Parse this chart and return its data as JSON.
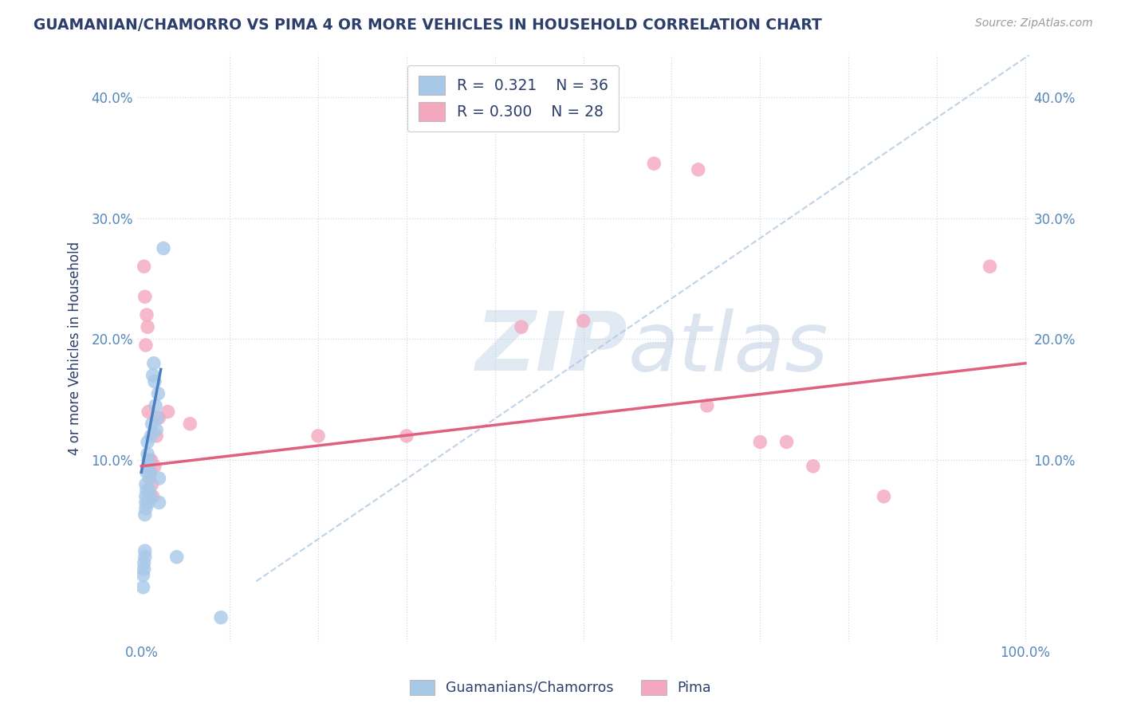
{
  "title": "GUAMANIAN/CHAMORRO VS PIMA 4 OR MORE VEHICLES IN HOUSEHOLD CORRELATION CHART",
  "source_text": "Source: ZipAtlas.com",
  "ylabel": "4 or more Vehicles in Household",
  "xlim": [
    -0.005,
    1.005
  ],
  "ylim": [
    -0.05,
    0.435
  ],
  "blue_R": "0.321",
  "blue_N": "36",
  "pink_R": "0.300",
  "pink_N": "28",
  "blue_color": "#a8c8e8",
  "pink_color": "#f4a8c0",
  "blue_line_color": "#4a7fc1",
  "pink_line_color": "#e06080",
  "diagonal_color": "#b0c8e0",
  "legend_blue_label": "R =  0.321    N = 36",
  "legend_pink_label": "R = 0.300    N = 28",
  "watermark_zip": "ZIP",
  "watermark_atlas": "atlas",
  "guamanian_scatter": [
    [
      0.002,
      0.005
    ],
    [
      0.002,
      -0.005
    ],
    [
      0.003,
      0.01
    ],
    [
      0.003,
      0.015
    ],
    [
      0.004,
      0.025
    ],
    [
      0.004,
      0.02
    ],
    [
      0.004,
      0.055
    ],
    [
      0.005,
      0.065
    ],
    [
      0.005,
      0.07
    ],
    [
      0.005,
      0.06
    ],
    [
      0.005,
      0.08
    ],
    [
      0.006,
      0.075
    ],
    [
      0.006,
      0.09
    ],
    [
      0.007,
      0.095
    ],
    [
      0.007,
      0.105
    ],
    [
      0.007,
      0.115
    ],
    [
      0.008,
      0.1
    ],
    [
      0.008,
      0.065
    ],
    [
      0.009,
      0.075
    ],
    [
      0.009,
      0.085
    ],
    [
      0.01,
      0.09
    ],
    [
      0.01,
      0.07
    ],
    [
      0.011,
      0.12
    ],
    [
      0.012,
      0.13
    ],
    [
      0.013,
      0.17
    ],
    [
      0.014,
      0.18
    ],
    [
      0.015,
      0.165
    ],
    [
      0.016,
      0.145
    ],
    [
      0.017,
      0.125
    ],
    [
      0.018,
      0.135
    ],
    [
      0.019,
      0.155
    ],
    [
      0.02,
      0.085
    ],
    [
      0.02,
      0.065
    ],
    [
      0.025,
      0.275
    ],
    [
      0.04,
      0.02
    ],
    [
      0.09,
      -0.03
    ]
  ],
  "pima_scatter": [
    [
      0.003,
      0.26
    ],
    [
      0.004,
      0.235
    ],
    [
      0.005,
      0.195
    ],
    [
      0.006,
      0.22
    ],
    [
      0.007,
      0.21
    ],
    [
      0.008,
      0.14
    ],
    [
      0.009,
      0.1
    ],
    [
      0.01,
      0.09
    ],
    [
      0.011,
      0.1
    ],
    [
      0.012,
      0.08
    ],
    [
      0.013,
      0.07
    ],
    [
      0.015,
      0.095
    ],
    [
      0.017,
      0.12
    ],
    [
      0.02,
      0.135
    ],
    [
      0.03,
      0.14
    ],
    [
      0.055,
      0.13
    ],
    [
      0.2,
      0.12
    ],
    [
      0.3,
      0.12
    ],
    [
      0.43,
      0.21
    ],
    [
      0.5,
      0.215
    ],
    [
      0.58,
      0.345
    ],
    [
      0.63,
      0.34
    ],
    [
      0.64,
      0.145
    ],
    [
      0.7,
      0.115
    ],
    [
      0.73,
      0.115
    ],
    [
      0.76,
      0.095
    ],
    [
      0.84,
      0.07
    ],
    [
      0.96,
      0.26
    ]
  ],
  "blue_line_pts": [
    [
      0.0,
      0.09
    ],
    [
      0.022,
      0.175
    ]
  ],
  "pink_line_pts": [
    [
      0.0,
      0.095
    ],
    [
      1.0,
      0.18
    ]
  ],
  "diagonal_line_pts": [
    [
      0.13,
      0.0
    ],
    [
      1.005,
      0.435
    ]
  ],
  "background_color": "#ffffff",
  "grid_color": "#d0d8e8",
  "title_color": "#2c3e6b",
  "axis_label_color": "#2c3e6b",
  "tick_label_color": "#5588bb",
  "ytick_positions": [
    0.1,
    0.2,
    0.3,
    0.4
  ],
  "ytick_labels": [
    "10.0%",
    "20.0%",
    "30.0%",
    "40.0%"
  ]
}
